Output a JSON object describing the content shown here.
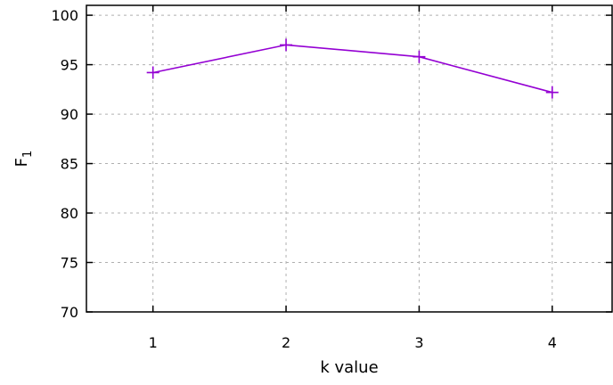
{
  "chart_data": {
    "type": "line",
    "title": "",
    "xlabel": "k value",
    "ylabel": {
      "base": "F",
      "subscript": "1"
    },
    "x": [
      1,
      2,
      3,
      4
    ],
    "x_ticks": [
      "1",
      "2",
      "3",
      "4"
    ],
    "xlim": [
      0.5,
      4.45
    ],
    "ylim": [
      70,
      101
    ],
    "y_ticks": [
      70,
      75,
      80,
      85,
      90,
      95,
      100
    ],
    "grid": true,
    "series": [
      {
        "values": [
          94.2,
          97.0,
          95.8,
          92.2
        ],
        "color": "#9400d3",
        "marker": "plus"
      }
    ]
  }
}
